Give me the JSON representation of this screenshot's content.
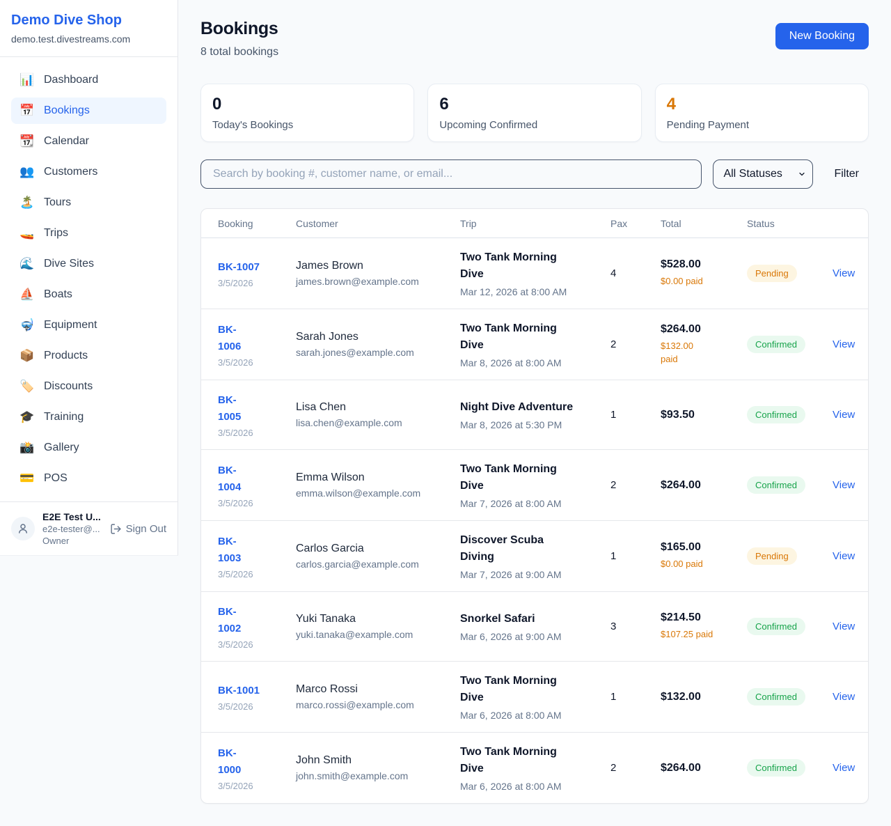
{
  "sidebar": {
    "brand": {
      "name": "Demo Dive Shop",
      "domain": "demo.test.divestreams.com"
    },
    "nav": [
      {
        "label": "Dashboard",
        "icon": "📊",
        "active": false
      },
      {
        "label": "Bookings",
        "icon": "📅",
        "active": true
      },
      {
        "label": "Calendar",
        "icon": "📆",
        "active": false
      },
      {
        "label": "Customers",
        "icon": "👥",
        "active": false
      },
      {
        "label": "Tours",
        "icon": "🏝️",
        "active": false
      },
      {
        "label": "Trips",
        "icon": "🚤",
        "active": false
      },
      {
        "label": "Dive Sites",
        "icon": "🌊",
        "active": false
      },
      {
        "label": "Boats",
        "icon": "⛵",
        "active": false
      },
      {
        "label": "Equipment",
        "icon": "🤿",
        "active": false
      },
      {
        "label": "Products",
        "icon": "📦",
        "active": false
      },
      {
        "label": "Discounts",
        "icon": "🏷️",
        "active": false
      },
      {
        "label": "Training",
        "icon": "🎓",
        "active": false
      },
      {
        "label": "Gallery",
        "icon": "📸",
        "active": false
      },
      {
        "label": "POS",
        "icon": "💳",
        "active": false
      }
    ],
    "user": {
      "name": "E2E Test U...",
      "email": "e2e-tester@...",
      "role": "Owner",
      "signout_label": "Sign Out"
    }
  },
  "header": {
    "title": "Bookings",
    "subtitle": "8 total bookings",
    "new_booking_label": "New Booking"
  },
  "stats": [
    {
      "value": "0",
      "label": "Today's Bookings",
      "color": "#0f172a"
    },
    {
      "value": "6",
      "label": "Upcoming Confirmed",
      "color": "#0f172a"
    },
    {
      "value": "4",
      "label": "Pending Payment",
      "color": "#d97706"
    }
  ],
  "filters": {
    "search_placeholder": "Search by booking #, customer name, or email...",
    "status_selected": "All Statuses",
    "filter_label": "Filter"
  },
  "table": {
    "headers": {
      "booking": "Booking",
      "customer": "Customer",
      "trip": "Trip",
      "pax": "Pax",
      "total": "Total",
      "status": "Status"
    },
    "rows": [
      {
        "number": "BK-1007",
        "date": "3/5/2026",
        "customer": "James Brown",
        "email": "james.brown@example.com",
        "trip": "Two Tank Morning\nDive",
        "trip_time": "Mar 12, 2026 at 8:00 AM",
        "pax": "4",
        "total": "$528.00",
        "paid": "$0.00 paid",
        "status": "Pending",
        "action": "View"
      },
      {
        "number": "BK-\n1006",
        "date": "3/5/2026",
        "customer": "Sarah Jones",
        "email": "sarah.jones@example.com",
        "trip": "Two Tank Morning\nDive",
        "trip_time": "Mar 8, 2026 at 8:00 AM",
        "pax": "2",
        "total": "$264.00",
        "paid": "$132.00\npaid",
        "status": "Confirmed",
        "action": "View"
      },
      {
        "number": "BK-\n1005",
        "date": "3/5/2026",
        "customer": "Lisa Chen",
        "email": "lisa.chen@example.com",
        "trip": "Night Dive Adventure",
        "trip_time": "Mar 8, 2026 at 5:30 PM",
        "pax": "1",
        "total": "$93.50",
        "paid": "",
        "status": "Confirmed",
        "action": "View"
      },
      {
        "number": "BK-\n1004",
        "date": "3/5/2026",
        "customer": "Emma Wilson",
        "email": "emma.wilson@example.com",
        "trip": "Two Tank Morning\nDive",
        "trip_time": "Mar 7, 2026 at 8:00 AM",
        "pax": "2",
        "total": "$264.00",
        "paid": "",
        "status": "Confirmed",
        "action": "View"
      },
      {
        "number": "BK-\n1003",
        "date": "3/5/2026",
        "customer": "Carlos Garcia",
        "email": "carlos.garcia@example.com",
        "trip": "Discover Scuba\nDiving",
        "trip_time": "Mar 7, 2026 at 9:00 AM",
        "pax": "1",
        "total": "$165.00",
        "paid": "$0.00 paid",
        "status": "Pending",
        "action": "View"
      },
      {
        "number": "BK-\n1002",
        "date": "3/5/2026",
        "customer": "Yuki Tanaka",
        "email": "yuki.tanaka@example.com",
        "trip": "Snorkel Safari",
        "trip_time": "Mar 6, 2026 at 9:00 AM",
        "pax": "3",
        "total": "$214.50",
        "paid": "$107.25 paid",
        "status": "Confirmed",
        "action": "View"
      },
      {
        "number": "BK-1001",
        "date": "3/5/2026",
        "customer": "Marco Rossi",
        "email": "marco.rossi@example.com",
        "trip": "Two Tank Morning\nDive",
        "trip_time": "Mar 6, 2026 at 8:00 AM",
        "pax": "1",
        "total": "$132.00",
        "paid": "",
        "status": "Confirmed",
        "action": "View"
      },
      {
        "number": "BK-\n1000",
        "date": "3/5/2026",
        "customer": "John Smith",
        "email": "john.smith@example.com",
        "trip": "Two Tank Morning\nDive",
        "trip_time": "Mar 6, 2026 at 8:00 AM",
        "pax": "2",
        "total": "$264.00",
        "paid": "",
        "status": "Confirmed",
        "action": "View"
      }
    ]
  },
  "colors": {
    "accent": "#2563eb",
    "pending_text": "#d97706",
    "confirmed_text": "#16a34a",
    "active_nav_bg": "#eff6ff"
  }
}
